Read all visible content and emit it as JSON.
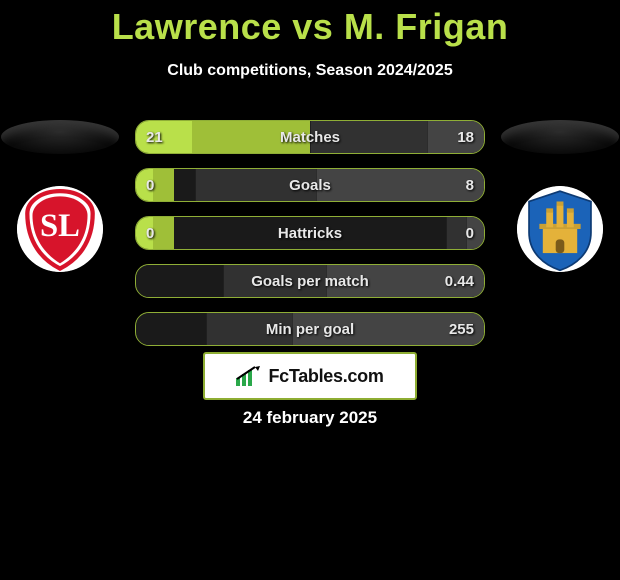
{
  "colors": {
    "accent": "#b9e04a",
    "accent_dark": "#9fbf38",
    "bar_border": "#8fae36",
    "grey_inner": "#313131",
    "grey_outer": "#444444",
    "bar_bg": "#1a1a1a",
    "page_bg": "#000000"
  },
  "title": "Lawrence vs M. Frigan",
  "subtitle": "Club competitions, Season 2024/2025",
  "date": "24 february 2025",
  "brand": {
    "text": "FcTables.com"
  },
  "bars": [
    {
      "label": "Matches",
      "left": "21",
      "right": "18",
      "both_sides": true,
      "seg_pct": {
        "lo": 16,
        "li": 34,
        "ri": 34,
        "ro": 16
      }
    },
    {
      "label": "Goals",
      "left": "0",
      "right": "8",
      "both_sides": true,
      "seg_pct": {
        "lo": 5,
        "li": 6,
        "ri": 35,
        "ro": 48
      }
    },
    {
      "label": "Hattricks",
      "left": "0",
      "right": "0",
      "both_sides": true,
      "seg_pct": {
        "lo": 5,
        "li": 6,
        "ri": 6,
        "ro": 5
      }
    },
    {
      "label": "Goals per match",
      "left": "",
      "right": "0.44",
      "both_sides": false,
      "seg_pct": {
        "lo": 0,
        "li": 0,
        "ri": 30,
        "ro": 45
      }
    },
    {
      "label": "Min per goal",
      "left": "",
      "right": "255",
      "both_sides": false,
      "seg_pct": {
        "lo": 0,
        "li": 0,
        "ri": 25,
        "ro": 55
      }
    }
  ],
  "bar_geometry": {
    "h": 32,
    "radius": 14,
    "gap": 14,
    "fontsize": 15
  },
  "left_club": {
    "name": "Standard Liège",
    "badge_bg": "#ffffff",
    "badge_accent": "#d7142b"
  },
  "right_club": {
    "name": "Westerlo",
    "badge_bg": "#ffffff",
    "badge_blue": "#1b63b8",
    "badge_gold": "#e4b23a"
  }
}
